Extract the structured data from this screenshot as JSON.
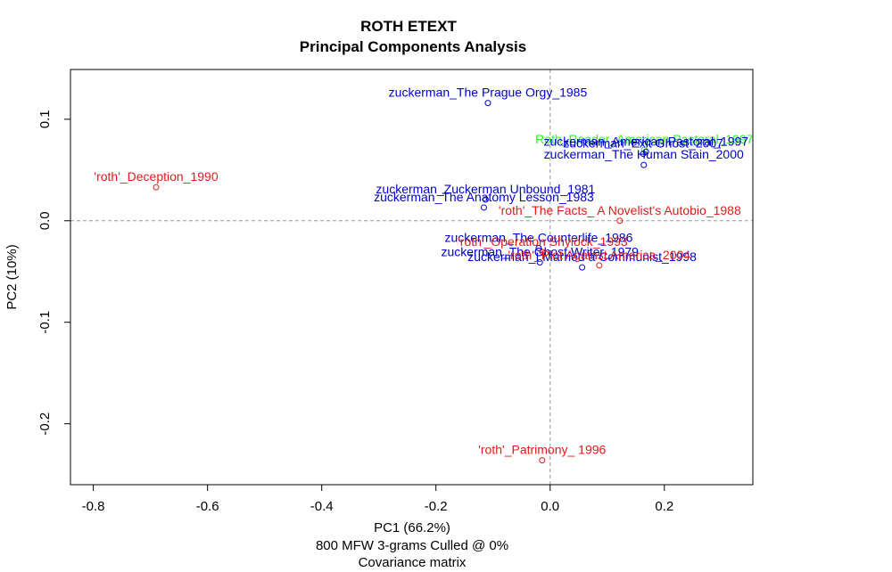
{
  "chart_data": {
    "type": "scatter",
    "title": "ROTH ETEXT",
    "subtitle": "Principal Components Analysis",
    "xlabel": "PC1 (66.2%)",
    "xlabel2": "800 MFW 3-grams Culled @ 0%",
    "xlabel3": "Covariance matrix",
    "ylabel": "PC2 (10%)",
    "xlim": [
      -0.84,
      0.355
    ],
    "ylim": [
      -0.26,
      0.149
    ],
    "xticks": [
      -0.8,
      -0.6,
      -0.4,
      -0.2,
      0.0,
      0.2
    ],
    "xtick_labels": [
      "-0.8",
      "-0.6",
      "-0.4",
      "-0.2",
      "0.0",
      "0.2"
    ],
    "yticks": [
      -0.2,
      -0.1,
      0.0,
      0.1
    ],
    "ytick_labels": [
      "-0.2",
      "-0.1",
      "0.0",
      "0.1"
    ],
    "reference_lines": {
      "x": 0.0,
      "y": 0.0,
      "style": "dashed"
    },
    "colors": {
      "zuckerman": "#0000cc",
      "roth": "#e31a1c",
      "other": "#33ee33",
      "ref": "#999999"
    },
    "points": [
      {
        "label": "zuckerman_The Prague Orgy_1985",
        "x": -0.109,
        "y": 0.116,
        "group": "zuckerman"
      },
      {
        "label": "'roth'_Deception_1990",
        "x": -0.69,
        "y": 0.033,
        "group": "roth"
      },
      {
        "label": "Roth_Reader_American Pastoral_1997",
        "x": 0.165,
        "y": 0.07,
        "group": "other"
      },
      {
        "label": "zuckerman_American Pastoral_1997",
        "x": 0.168,
        "y": 0.068,
        "group": "zuckerman"
      },
      {
        "label": "zuckerman_Exit Ghost_2007",
        "x": 0.163,
        "y": 0.066,
        "group": "zuckerman"
      },
      {
        "label": "zuckerman_The Human Stain_2000",
        "x": 0.164,
        "y": 0.055,
        "group": "zuckerman"
      },
      {
        "label": "zuckerman_Zuckerman Unbound_1981",
        "x": -0.113,
        "y": 0.021,
        "group": "zuckerman"
      },
      {
        "label": "zuckerman_The Anatomy Lesson_1983",
        "x": -0.116,
        "y": 0.013,
        "group": "zuckerman"
      },
      {
        "label": "'roth'_The Facts_ A Novelist's Autobio_1988",
        "x": 0.122,
        "y": 0.0,
        "group": "roth"
      },
      {
        "label": "zuckerman_The Counterlife_1986",
        "x": -0.02,
        "y": -0.027,
        "group": "zuckerman"
      },
      {
        "label": "'roth'_Operation Shylock_1993",
        "x": -0.013,
        "y": -0.031,
        "group": "roth"
      },
      {
        "label": "zuckerman_The Ghost Writer_1979",
        "x": -0.018,
        "y": -0.041,
        "group": "zuckerman"
      },
      {
        "label": "zuckerman_I Married a Communist_1998",
        "x": 0.056,
        "y": -0.046,
        "group": "zuckerman"
      },
      {
        "label": "'roth'_Plot Against America_2004",
        "x": 0.086,
        "y": -0.044,
        "group": "roth"
      },
      {
        "label": "'roth'_Patrimony_ 1996",
        "x": -0.014,
        "y": -0.236,
        "group": "roth"
      }
    ]
  }
}
